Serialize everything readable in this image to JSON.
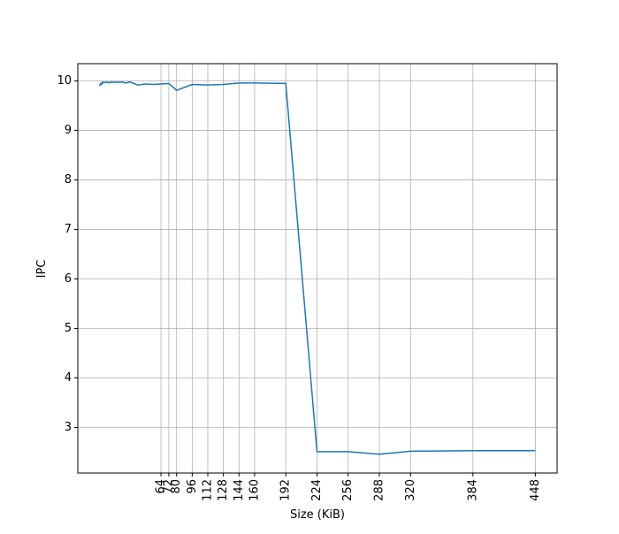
{
  "chart_data": {
    "type": "line",
    "x_label": "Size (KiB)",
    "y_label": "IPC",
    "x": [
      1,
      2,
      3,
      4,
      5,
      6,
      8,
      10,
      12,
      14,
      16,
      20,
      24,
      28,
      32,
      40,
      48,
      56,
      64,
      72,
      80,
      96,
      112,
      128,
      144,
      160,
      192,
      224,
      256,
      288,
      320,
      384,
      448
    ],
    "series": [
      {
        "name": "IPC",
        "color": "#1f77b4",
        "values": [
          9.9,
          9.95,
          9.93,
          9.98,
          9.96,
          9.97,
          9.98,
          9.96,
          9.98,
          9.97,
          9.98,
          9.97,
          9.98,
          9.96,
          9.98,
          9.92,
          9.94,
          9.93,
          9.94,
          9.95,
          9.81,
          9.93,
          9.92,
          9.93,
          9.96,
          9.96,
          9.95,
          2.51,
          2.51,
          2.46,
          2.52,
          2.53,
          2.53
        ]
      }
    ],
    "xlim": [
      -21.35,
      470.35
    ],
    "ylim": [
      2.08,
      10.35
    ],
    "xticks": [
      64,
      72,
      80,
      96,
      112,
      128,
      144,
      160,
      192,
      224,
      256,
      288,
      320,
      384,
      448
    ],
    "yticks": [
      3,
      4,
      5,
      6,
      7,
      8,
      9,
      10
    ],
    "grid": true
  }
}
